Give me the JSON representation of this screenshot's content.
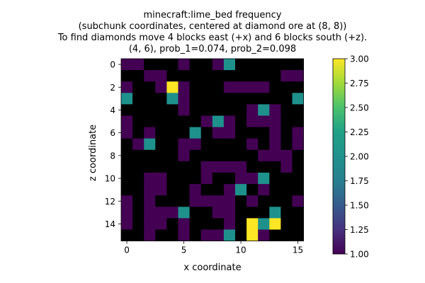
{
  "chart_data": {
    "type": "heatmap",
    "title_lines": [
      "minecraft:lime_bed frequency",
      "(subchunk coordinates, centered at diamond ore at (8, 8))",
      "To find diamonds move 4 blocks east (+x) and 6 blocks south (+z).",
      "(4, 6), prob_1=0.074, prob_2=0.098"
    ],
    "xlabel": "x coordinate",
    "ylabel": "z coordinate",
    "x_ticks": [
      0,
      5,
      10,
      15
    ],
    "y_ticks": [
      0,
      2,
      4,
      6,
      8,
      10,
      12,
      14
    ],
    "x_range": [
      -0.5,
      15.5
    ],
    "y_range": [
      -0.5,
      15.5
    ],
    "colorbar": {
      "min": 1.0,
      "max": 3.0,
      "ticks": [
        "1.00",
        "1.25",
        "1.50",
        "1.75",
        "2.00",
        "2.25",
        "2.50",
        "2.75",
        "3.00"
      ]
    },
    "colormap": "viridis",
    "empty_color": "#000000",
    "grid": [
      [
        1,
        1,
        0,
        0,
        0,
        1,
        0,
        0,
        1,
        2,
        0,
        0,
        0,
        0,
        0,
        0
      ],
      [
        0,
        0,
        1,
        1,
        0,
        0,
        0,
        0,
        0,
        0,
        0,
        0,
        0,
        0,
        1,
        1
      ],
      [
        1,
        0,
        0,
        1,
        3,
        1,
        0,
        0,
        0,
        1,
        1,
        1,
        1,
        0,
        0,
        0
      ],
      [
        2,
        0,
        0,
        0,
        2,
        1,
        0,
        0,
        0,
        0,
        0,
        0,
        0,
        0,
        0,
        2
      ],
      [
        0,
        0,
        0,
        0,
        0,
        1,
        0,
        0,
        0,
        0,
        0,
        1,
        2,
        1,
        0,
        0
      ],
      [
        1,
        0,
        0,
        0,
        0,
        0,
        0,
        1,
        2,
        1,
        0,
        1,
        1,
        1,
        0,
        0
      ],
      [
        1,
        0,
        1,
        0,
        0,
        0,
        2,
        0,
        1,
        1,
        0,
        0,
        0,
        1,
        0,
        1
      ],
      [
        0,
        1,
        2,
        0,
        0,
        1,
        1,
        0,
        0,
        0,
        0,
        1,
        0,
        1,
        0,
        1
      ],
      [
        0,
        0,
        0,
        0,
        0,
        1,
        0,
        0,
        0,
        0,
        0,
        0,
        1,
        1,
        1,
        0
      ],
      [
        0,
        0,
        0,
        0,
        0,
        0,
        0,
        1,
        1,
        1,
        1,
        0,
        0,
        0,
        1,
        0
      ],
      [
        0,
        0,
        1,
        1,
        0,
        0,
        0,
        1,
        0,
        0,
        1,
        1,
        2,
        0,
        0,
        0
      ],
      [
        0,
        0,
        1,
        1,
        0,
        0,
        1,
        0,
        0,
        1,
        2,
        0,
        1,
        0,
        0,
        0
      ],
      [
        1,
        0,
        1,
        0,
        0,
        0,
        1,
        1,
        1,
        1,
        0,
        1,
        0,
        0,
        0,
        1
      ],
      [
        1,
        0,
        1,
        1,
        1,
        2,
        0,
        0,
        1,
        1,
        0,
        0,
        0,
        2,
        0,
        0
      ],
      [
        1,
        0,
        1,
        1,
        0,
        1,
        0,
        0,
        0,
        1,
        0,
        3,
        2,
        3,
        0,
        0
      ],
      [
        0,
        0,
        1,
        0,
        0,
        1,
        0,
        1,
        1,
        2,
        0,
        3,
        1,
        0,
        0,
        0
      ]
    ]
  }
}
